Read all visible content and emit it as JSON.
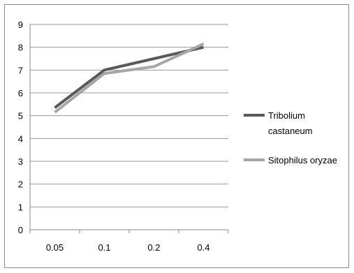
{
  "chart_data": {
    "type": "line",
    "categories": [
      "0.05",
      "0.1",
      "0.2",
      "0.4"
    ],
    "ylim": [
      0,
      9
    ],
    "yticks": [
      "0",
      "1",
      "2",
      "3",
      "4",
      "5",
      "6",
      "7",
      "8",
      "9"
    ],
    "grid": true,
    "legend_position": "right",
    "series": [
      {
        "name": "Tribolium castaneum",
        "name_lines": [
          "Tribolium",
          "castaneum"
        ],
        "values": [
          5.35,
          7.0,
          7.5,
          8.0
        ],
        "color": "#595959"
      },
      {
        "name": "Sitophilus oryzae",
        "name_lines": [
          "Sitophilus oryzae"
        ],
        "values": [
          5.15,
          6.85,
          7.15,
          8.15
        ],
        "color": "#a6a6a6"
      }
    ]
  }
}
